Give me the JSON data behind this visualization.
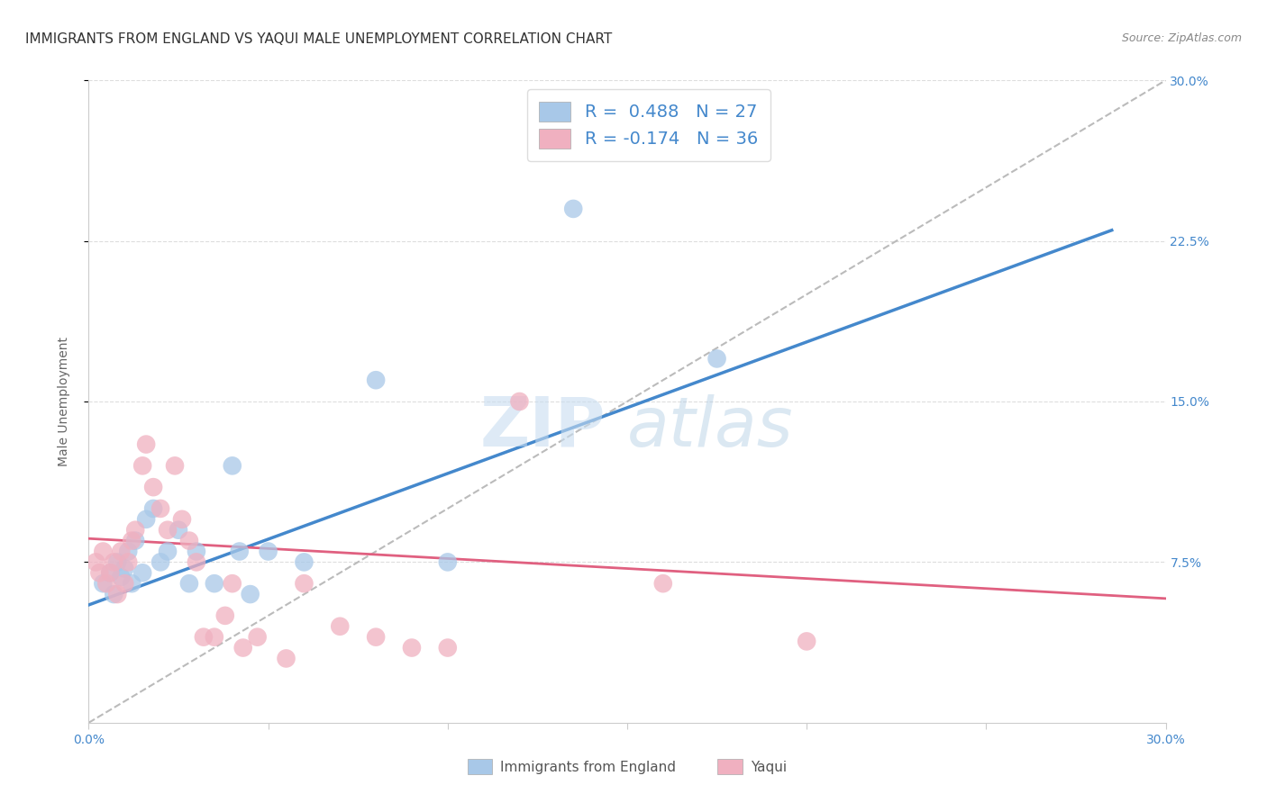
{
  "title": "IMMIGRANTS FROM ENGLAND VS YAQUI MALE UNEMPLOYMENT CORRELATION CHART",
  "source": "Source: ZipAtlas.com",
  "ylabel": "Male Unemployment",
  "y_tick_values": [
    0.075,
    0.15,
    0.225,
    0.3
  ],
  "xlim": [
    0.0,
    0.3
  ],
  "ylim": [
    0.0,
    0.3
  ],
  "legend_label1": "Immigrants from England",
  "legend_label2": "Yaqui",
  "R1": 0.488,
  "N1": 27,
  "R2": -0.174,
  "N2": 36,
  "color_blue_scatter": "#a8c8e8",
  "color_pink_scatter": "#f0b0c0",
  "color_blue_line": "#4488cc",
  "color_pink_line": "#e06080",
  "color_gray_dashed": "#bbbbbb",
  "background_color": "#ffffff",
  "blue_points_x": [
    0.004,
    0.006,
    0.007,
    0.008,
    0.009,
    0.01,
    0.011,
    0.012,
    0.013,
    0.015,
    0.016,
    0.018,
    0.02,
    0.022,
    0.025,
    0.028,
    0.03,
    0.035,
    0.04,
    0.042,
    0.045,
    0.05,
    0.06,
    0.08,
    0.1,
    0.135,
    0.175
  ],
  "blue_points_y": [
    0.065,
    0.07,
    0.06,
    0.075,
    0.068,
    0.072,
    0.08,
    0.065,
    0.085,
    0.07,
    0.095,
    0.1,
    0.075,
    0.08,
    0.09,
    0.065,
    0.08,
    0.065,
    0.12,
    0.08,
    0.06,
    0.08,
    0.075,
    0.16,
    0.075,
    0.24,
    0.17
  ],
  "pink_points_x": [
    0.002,
    0.003,
    0.004,
    0.005,
    0.006,
    0.007,
    0.008,
    0.009,
    0.01,
    0.011,
    0.012,
    0.013,
    0.015,
    0.016,
    0.018,
    0.02,
    0.022,
    0.024,
    0.026,
    0.028,
    0.03,
    0.032,
    0.035,
    0.038,
    0.04,
    0.043,
    0.047,
    0.055,
    0.06,
    0.07,
    0.08,
    0.09,
    0.1,
    0.12,
    0.16,
    0.2
  ],
  "pink_points_y": [
    0.075,
    0.07,
    0.08,
    0.065,
    0.07,
    0.075,
    0.06,
    0.08,
    0.065,
    0.075,
    0.085,
    0.09,
    0.12,
    0.13,
    0.11,
    0.1,
    0.09,
    0.12,
    0.095,
    0.085,
    0.075,
    0.04,
    0.04,
    0.05,
    0.065,
    0.035,
    0.04,
    0.03,
    0.065,
    0.045,
    0.04,
    0.035,
    0.035,
    0.15,
    0.065,
    0.038
  ],
  "blue_line_x": [
    0.0,
    0.285
  ],
  "blue_line_y": [
    0.055,
    0.23
  ],
  "pink_line_x": [
    0.0,
    0.3
  ],
  "pink_line_y": [
    0.086,
    0.058
  ],
  "title_fontsize": 11,
  "source_fontsize": 9,
  "axis_label_fontsize": 10,
  "tick_fontsize": 10,
  "legend_fontsize": 14
}
